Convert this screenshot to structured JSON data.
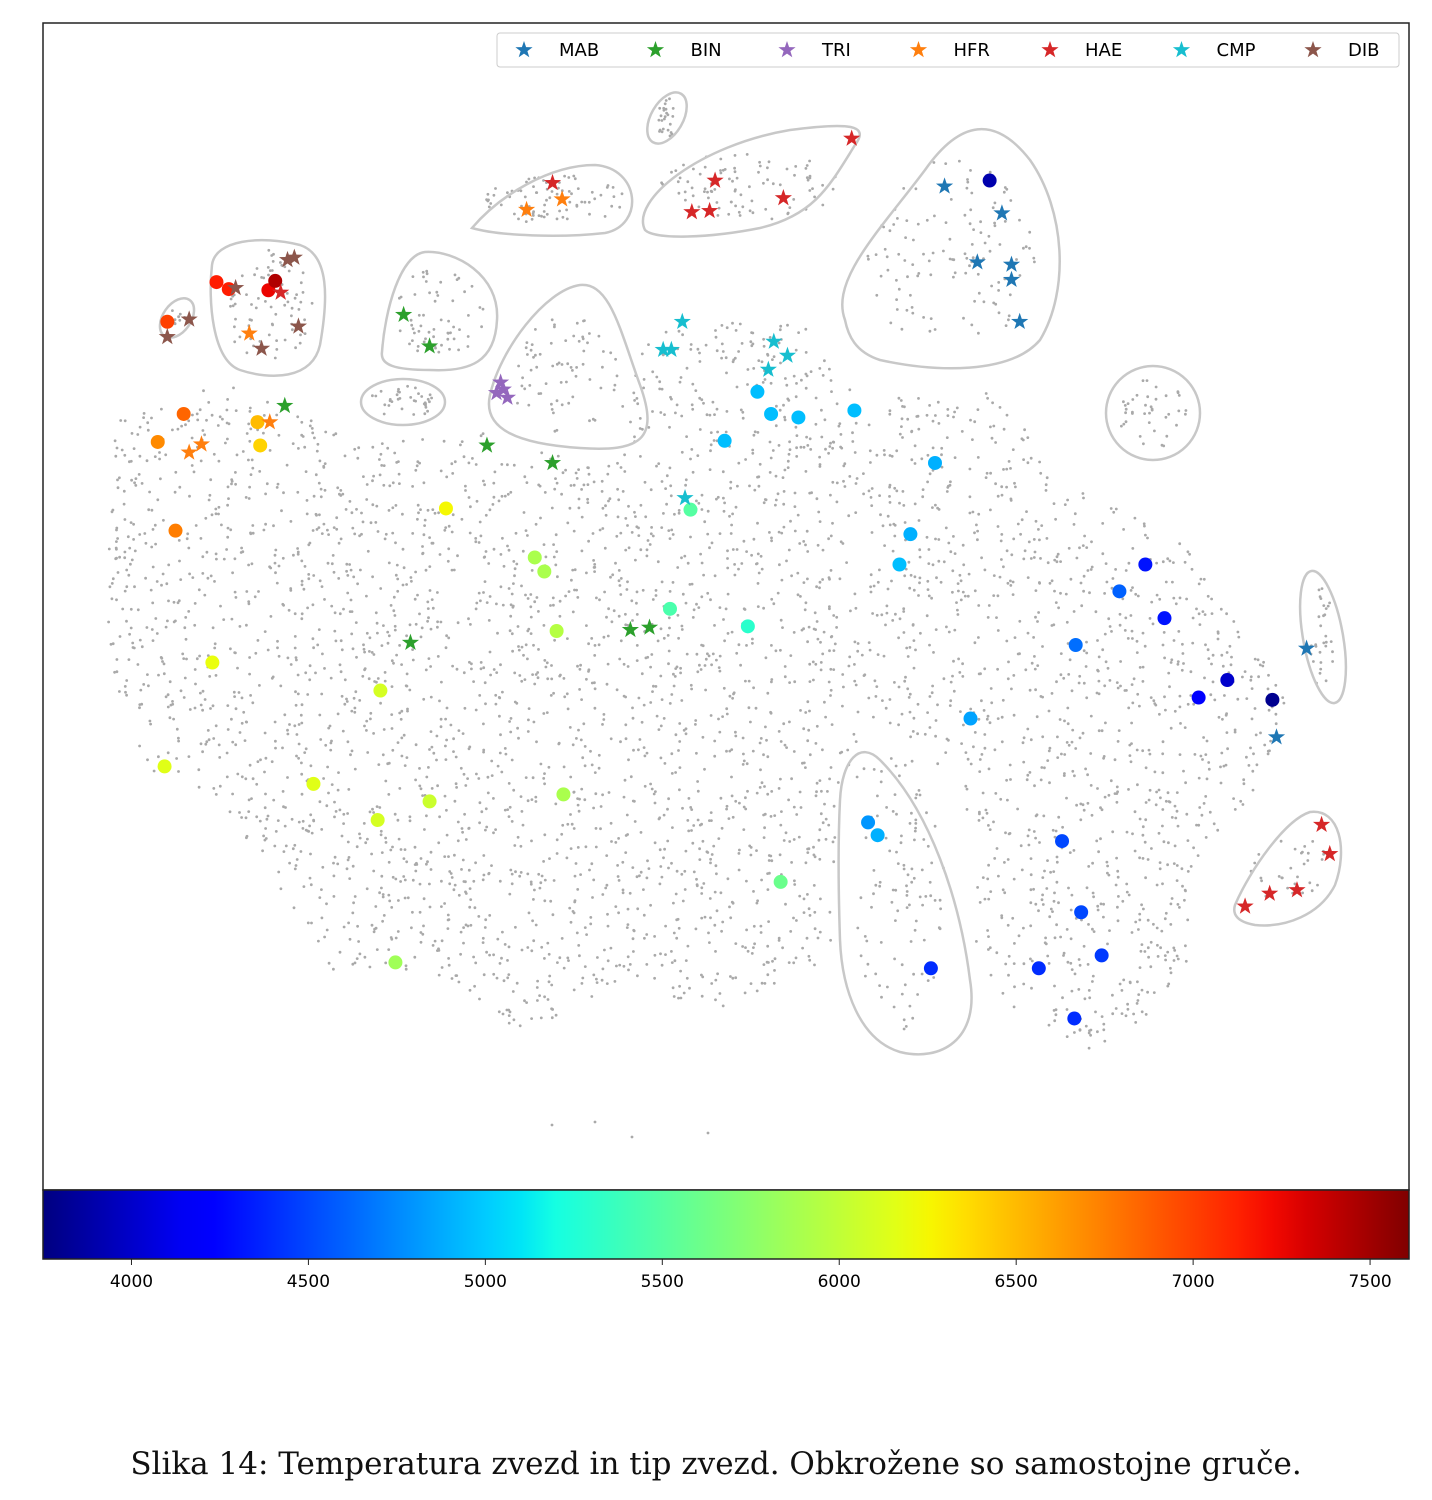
{
  "caption": "Slika 14: Temperatura zvezd in tip zvezd. Obkrožene so samostojne gruče.",
  "chart_data": {
    "type": "scatter",
    "title": "",
    "xlabel": "",
    "ylabel": "",
    "xlim": [
      0,
      100
    ],
    "ylim": [
      0,
      100
    ],
    "grid": false,
    "legend_placement": "top-right",
    "colorbar": {
      "colormap": "jet",
      "range": [
        3750,
        7610
      ],
      "ticks": [
        4000,
        4500,
        5000,
        5500,
        6000,
        6500,
        7000,
        7500
      ],
      "tick_labels": [
        "4000",
        "4500",
        "5000",
        "5500",
        "6000",
        "6500",
        "7000",
        "7500"
      ]
    },
    "background_points_color": "#a9a9a9",
    "temperature_points": [
      {
        "x": 69.3,
        "y": 86.5,
        "t": 3900
      },
      {
        "x": 9.1,
        "y": 74.4,
        "t": 7000
      },
      {
        "x": 12.7,
        "y": 77.8,
        "t": 7150
      },
      {
        "x": 13.6,
        "y": 77.2,
        "t": 7150
      },
      {
        "x": 16.5,
        "y": 77.1,
        "t": 7250
      },
      {
        "x": 17.0,
        "y": 77.9,
        "t": 7450
      },
      {
        "x": 10.3,
        "y": 66.5,
        "t": 6850
      },
      {
        "x": 8.4,
        "y": 64.1,
        "t": 6700
      },
      {
        "x": 15.7,
        "y": 65.8,
        "t": 6500
      },
      {
        "x": 15.9,
        "y": 63.8,
        "t": 6400
      },
      {
        "x": 9.7,
        "y": 56.5,
        "t": 6750
      },
      {
        "x": 29.5,
        "y": 58.4,
        "t": 6250
      },
      {
        "x": 36.0,
        "y": 54.2,
        "t": 5900
      },
      {
        "x": 36.7,
        "y": 53.0,
        "t": 5900
      },
      {
        "x": 37.6,
        "y": 47.9,
        "t": 5950
      },
      {
        "x": 12.4,
        "y": 45.2,
        "t": 6200
      },
      {
        "x": 24.7,
        "y": 42.8,
        "t": 6100
      },
      {
        "x": 8.9,
        "y": 36.3,
        "t": 6150
      },
      {
        "x": 19.8,
        "y": 34.8,
        "t": 6150
      },
      {
        "x": 24.5,
        "y": 31.7,
        "t": 6100
      },
      {
        "x": 28.3,
        "y": 33.3,
        "t": 6050
      },
      {
        "x": 38.1,
        "y": 33.9,
        "t": 5900
      },
      {
        "x": 25.8,
        "y": 19.5,
        "t": 5850
      },
      {
        "x": 47.4,
        "y": 58.3,
        "t": 5500
      },
      {
        "x": 45.9,
        "y": 49.8,
        "t": 5450
      },
      {
        "x": 51.6,
        "y": 48.3,
        "t": 5300
      },
      {
        "x": 54.0,
        "y": 26.4,
        "t": 5600
      },
      {
        "x": 52.3,
        "y": 68.4,
        "t": 4950
      },
      {
        "x": 53.3,
        "y": 66.5,
        "t": 4950
      },
      {
        "x": 55.3,
        "y": 66.2,
        "t": 4950
      },
      {
        "x": 49.9,
        "y": 64.2,
        "t": 4950
      },
      {
        "x": 59.4,
        "y": 66.8,
        "t": 4950
      },
      {
        "x": 65.3,
        "y": 62.3,
        "t": 4900
      },
      {
        "x": 63.5,
        "y": 56.2,
        "t": 4900
      },
      {
        "x": 62.7,
        "y": 53.6,
        "t": 4950
      },
      {
        "x": 67.9,
        "y": 40.4,
        "t": 4850
      },
      {
        "x": 60.4,
        "y": 31.5,
        "t": 4800
      },
      {
        "x": 61.1,
        "y": 30.4,
        "t": 4900
      },
      {
        "x": 80.7,
        "y": 53.6,
        "t": 4300
      },
      {
        "x": 78.8,
        "y": 51.3,
        "t": 4600
      },
      {
        "x": 82.1,
        "y": 49.0,
        "t": 4300
      },
      {
        "x": 75.6,
        "y": 46.7,
        "t": 4650
      },
      {
        "x": 84.6,
        "y": 42.2,
        "t": 4200
      },
      {
        "x": 86.7,
        "y": 43.7,
        "t": 4000
      },
      {
        "x": 90.0,
        "y": 42.0,
        "t": 3800
      },
      {
        "x": 74.6,
        "y": 29.9,
        "t": 4500
      },
      {
        "x": 76.0,
        "y": 23.8,
        "t": 4500
      },
      {
        "x": 65.0,
        "y": 19.0,
        "t": 4400
      },
      {
        "x": 72.9,
        "y": 19.0,
        "t": 4400
      },
      {
        "x": 77.5,
        "y": 20.1,
        "t": 4450
      },
      {
        "x": 75.5,
        "y": 14.7,
        "t": 4400
      }
    ],
    "series": [
      {
        "name": "MAB",
        "color": "#1f77b4",
        "points": [
          [
            66.0,
            86.0
          ],
          [
            70.2,
            83.7
          ],
          [
            68.4,
            79.5
          ],
          [
            70.9,
            79.3
          ],
          [
            70.9,
            78.0
          ],
          [
            71.5,
            74.4
          ],
          [
            92.5,
            46.4
          ],
          [
            90.3,
            38.8
          ]
        ]
      },
      {
        "name": "BIN",
        "color": "#2ca02c",
        "points": [
          [
            26.4,
            75.0
          ],
          [
            28.3,
            72.3
          ],
          [
            17.7,
            67.2
          ],
          [
            32.5,
            63.8
          ],
          [
            37.3,
            62.3
          ],
          [
            26.9,
            46.9
          ],
          [
            43.0,
            48.0
          ],
          [
            44.4,
            48.2
          ]
        ]
      },
      {
        "name": "TRI",
        "color": "#9467bd",
        "points": [
          [
            33.5,
            69.2
          ],
          [
            33.2,
            68.3
          ],
          [
            34.0,
            67.9
          ],
          [
            33.7,
            68.6
          ]
        ]
      },
      {
        "name": "HFR",
        "color": "#ff7f0e",
        "points": [
          [
            35.4,
            84.0
          ],
          [
            38.0,
            84.9
          ],
          [
            15.1,
            73.4
          ],
          [
            16.6,
            65.8
          ],
          [
            11.6,
            63.9
          ],
          [
            10.7,
            63.2
          ]
        ]
      },
      {
        "name": "HAE",
        "color": "#d62728",
        "points": [
          [
            37.3,
            86.3
          ],
          [
            49.2,
            86.5
          ],
          [
            47.5,
            83.8
          ],
          [
            48.8,
            83.9
          ],
          [
            54.2,
            85.0
          ],
          [
            59.2,
            90.1
          ],
          [
            17.4,
            76.9
          ],
          [
            93.6,
            31.3
          ],
          [
            94.2,
            28.8
          ],
          [
            91.8,
            25.7
          ],
          [
            89.8,
            25.4
          ],
          [
            88.0,
            24.3
          ]
        ]
      },
      {
        "name": "CMP",
        "color": "#17becf",
        "points": [
          [
            46.8,
            74.4
          ],
          [
            45.4,
            72.0
          ],
          [
            46.0,
            72.0
          ],
          [
            53.5,
            72.7
          ],
          [
            54.5,
            71.5
          ],
          [
            53.1,
            70.3
          ],
          [
            47.0,
            59.3
          ]
        ]
      },
      {
        "name": "DIB",
        "color": "#8c564b",
        "points": [
          [
            9.1,
            73.1
          ],
          [
            10.7,
            74.6
          ],
          [
            14.1,
            77.3
          ],
          [
            17.9,
            79.7
          ],
          [
            18.4,
            79.9
          ],
          [
            16.0,
            72.1
          ],
          [
            18.7,
            74.0
          ]
        ]
      }
    ]
  }
}
